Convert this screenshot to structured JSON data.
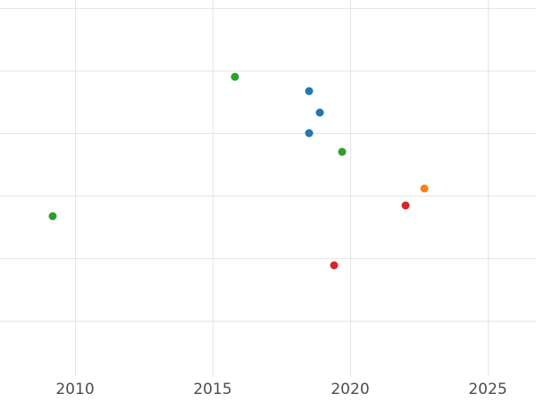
{
  "chart_data": {
    "type": "scatter",
    "xlabel": "",
    "ylabel": "",
    "x_ticks": [
      "2010",
      "2015",
      "2020",
      "2025"
    ],
    "x_tick_values": [
      2010,
      2015,
      2020,
      2025
    ],
    "xlim": [
      2007.3,
      2026.8
    ],
    "ylim": [
      0.1,
      6.1
    ],
    "y_gridline_values": [
      1,
      2,
      3,
      4,
      5,
      6
    ],
    "grid": true,
    "legend": "none",
    "note": "y-axis tick labels not visible in image; y values estimated in gridline units from bottom",
    "series": [
      {
        "name": "green",
        "color": "#2ca02c",
        "points": [
          {
            "x": 2009.2,
            "y": 2.67
          },
          {
            "x": 2015.8,
            "y": 4.9
          },
          {
            "x": 2019.7,
            "y": 3.7
          }
        ]
      },
      {
        "name": "blue",
        "color": "#1f77b4",
        "points": [
          {
            "x": 2018.5,
            "y": 4.67
          },
          {
            "x": 2018.9,
            "y": 4.33
          },
          {
            "x": 2018.5,
            "y": 4.0
          }
        ]
      },
      {
        "name": "orange",
        "color": "#ff7f0e",
        "points": [
          {
            "x": 2022.7,
            "y": 3.11
          }
        ]
      },
      {
        "name": "red",
        "color": "#d62728",
        "points": [
          {
            "x": 2022.0,
            "y": 2.84
          },
          {
            "x": 2019.4,
            "y": 1.89
          }
        ]
      }
    ]
  }
}
